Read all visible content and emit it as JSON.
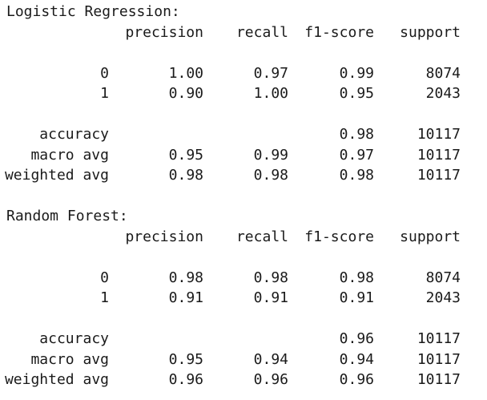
{
  "reports": [
    {
      "title": "Logistic Regression:",
      "headers": {
        "precision": "precision",
        "recall": "recall",
        "f1": "f1-score",
        "support": "support"
      },
      "class_rows": [
        {
          "label": "0",
          "precision": "1.00",
          "recall": "0.97",
          "f1": "0.99",
          "support": "8074"
        },
        {
          "label": "1",
          "precision": "0.90",
          "recall": "1.00",
          "f1": "0.95",
          "support": "2043"
        }
      ],
      "summary_rows": [
        {
          "label": "accuracy",
          "precision": "",
          "recall": "",
          "f1": "0.98",
          "support": "10117"
        },
        {
          "label": "macro avg",
          "precision": "0.95",
          "recall": "0.99",
          "f1": "0.97",
          "support": "10117"
        },
        {
          "label": "weighted avg",
          "precision": "0.98",
          "recall": "0.98",
          "f1": "0.98",
          "support": "10117"
        }
      ]
    },
    {
      "title": "Random Forest:",
      "headers": {
        "precision": "precision",
        "recall": "recall",
        "f1": "f1-score",
        "support": "support"
      },
      "class_rows": [
        {
          "label": "0",
          "precision": "0.98",
          "recall": "0.98",
          "f1": "0.98",
          "support": "8074"
        },
        {
          "label": "1",
          "precision": "0.91",
          "recall": "0.91",
          "f1": "0.91",
          "support": "2043"
        }
      ],
      "summary_rows": [
        {
          "label": "accuracy",
          "precision": "",
          "recall": "",
          "f1": "0.96",
          "support": "10117"
        },
        {
          "label": "macro avg",
          "precision": "0.95",
          "recall": "0.94",
          "f1": "0.94",
          "support": "10117"
        },
        {
          "label": "weighted avg",
          "precision": "0.96",
          "recall": "0.96",
          "f1": "0.96",
          "support": "10117"
        }
      ]
    }
  ]
}
